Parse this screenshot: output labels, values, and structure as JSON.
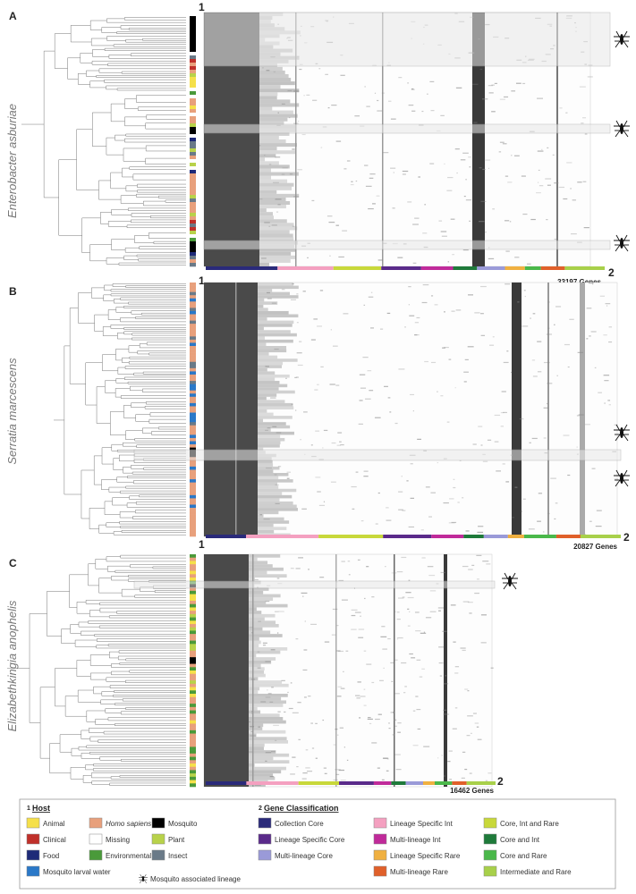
{
  "panels": [
    {
      "label": "A",
      "species": "Enterobacter asburiae",
      "genes_label": "33197 Genes",
      "host_marker": "1",
      "class_marker": "2"
    },
    {
      "label": "B",
      "species": "Serratia marcescens",
      "genes_label": "20827 Genes",
      "host_marker": "1",
      "class_marker": "2"
    },
    {
      "label": "C",
      "species": "Elizabethkingia anophelis",
      "genes_label": "16462 Genes",
      "host_marker": "1",
      "class_marker": "2"
    }
  ],
  "legend": {
    "host_number": "1",
    "host_title": "Host",
    "host_items": [
      {
        "label": "Animal",
        "color": "#f5e04a"
      },
      {
        "label": "Homo sapiens",
        "color": "#e8a07c"
      },
      {
        "label": "Mosquito",
        "color": "#000000"
      },
      {
        "label": "Clinical",
        "color": "#c0302a"
      },
      {
        "label": "Missing",
        "color": "#ffffff"
      },
      {
        "label": "Plant",
        "color": "#b8d24a"
      },
      {
        "label": "Food",
        "color": "#1e2a78"
      },
      {
        "label": "Environmental",
        "color": "#4a9a3a"
      },
      {
        "label": "Insect",
        "color": "#6a7a88"
      },
      {
        "label": "Mosquito larval water",
        "color": "#2a78c8"
      }
    ],
    "mosquito_lineage_label": "Mosquito associated lineage",
    "class_number": "2",
    "class_title": "Gene Classification",
    "class_items": [
      {
        "label": "Collection Core",
        "color": "#2a2a7a"
      },
      {
        "label": "Lineage Specific Int",
        "color": "#f4a0c0"
      },
      {
        "label": "Core, Int and Rare",
        "color": "#c8d83a"
      },
      {
        "label": "Lineage Specific Core",
        "color": "#5a2a8a"
      },
      {
        "label": "Multi-lineage Int",
        "color": "#c02a9a"
      },
      {
        "label": "Core and Int",
        "color": "#1e7a3a"
      },
      {
        "label": "Multi-lineage Core",
        "color": "#9a9ad8"
      },
      {
        "label": "Lineage Specific Rare",
        "color": "#f0b040"
      },
      {
        "label": "Core and Rare",
        "color": "#4ab84a"
      },
      {
        "label": "Multi-lineage Rare",
        "color": "#e0602a"
      },
      {
        "label": "Intermediate and Rare",
        "color": "#a8d04a"
      }
    ]
  }
}
